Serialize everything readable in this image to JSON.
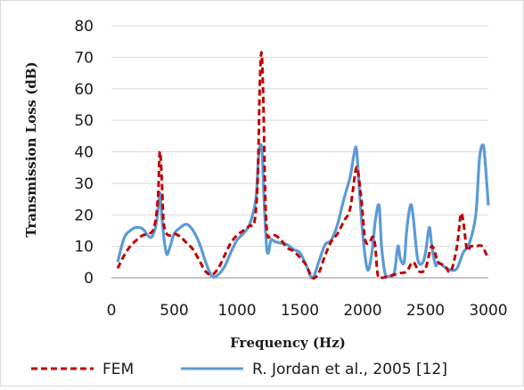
{
  "chart_data": {
    "type": "line",
    "xlabel": "Frequency (Hz)",
    "ylabel": "Transmission Loss (dB)",
    "xlim": [
      0,
      3000
    ],
    "ylim": [
      0,
      80
    ],
    "x_ticks": [
      0,
      500,
      1000,
      1500,
      2000,
      2500,
      3000
    ],
    "y_ticks": [
      0,
      10,
      20,
      30,
      40,
      50,
      60,
      70,
      80
    ],
    "grid": "horizontal",
    "legend_position": "bottom",
    "series": [
      {
        "name": "FEM",
        "color": "#c00000",
        "style": "dashed",
        "x": [
          50,
          100,
          150,
          200,
          250,
          300,
          340,
          370,
          385,
          400,
          415,
          440,
          470,
          500,
          550,
          600,
          650,
          700,
          750,
          800,
          850,
          900,
          950,
          1000,
          1050,
          1100,
          1140,
          1165,
          1180,
          1195,
          1210,
          1225,
          1240,
          1260,
          1300,
          1350,
          1400,
          1450,
          1500,
          1550,
          1600,
          1650,
          1700,
          1750,
          1800,
          1850,
          1900,
          1950,
          1980,
          2000,
          2020,
          2050,
          2080,
          2100,
          2120,
          2150,
          2200,
          2250,
          2300,
          2350,
          2400,
          2450,
          2500,
          2550,
          2600,
          2650,
          2700,
          2750,
          2780,
          2800,
          2830,
          2860,
          2900,
          2950,
          3000
        ],
        "values": [
          3,
          7,
          10,
          12,
          13.5,
          14,
          16,
          25,
          40,
          32,
          18,
          14,
          13.5,
          14,
          13,
          11,
          9,
          5.5,
          2,
          1,
          3,
          7,
          11,
          13.5,
          15,
          16.5,
          18,
          32,
          60,
          71.5,
          55,
          25,
          14,
          13,
          13.5,
          12,
          9.5,
          8.5,
          6.5,
          4,
          0,
          1.5,
          7,
          11.5,
          14,
          18,
          22,
          35,
          28,
          20,
          12,
          11,
          13,
          10,
          1,
          0,
          0.5,
          1,
          1.5,
          2,
          5,
          2,
          3,
          10,
          5,
          4,
          2,
          10,
          20,
          18,
          9,
          10,
          10,
          10,
          6
        ]
      },
      {
        "name": "R. Jordan et al., 2005 [12]",
        "color": "#5b9bd5",
        "style": "solid",
        "x": [
          50,
          100,
          150,
          200,
          250,
          300,
          330,
          360,
          385,
          400,
          420,
          440,
          460,
          500,
          550,
          600,
          650,
          700,
          750,
          800,
          850,
          900,
          950,
          1000,
          1050,
          1100,
          1150,
          1170,
          1185,
          1200,
          1215,
          1235,
          1250,
          1270,
          1300,
          1350,
          1400,
          1450,
          1500,
          1550,
          1600,
          1650,
          1700,
          1750,
          1800,
          1850,
          1900,
          1930,
          1950,
          1970,
          2000,
          2030,
          2050,
          2080,
          2100,
          2130,
          2150,
          2180,
          2200,
          2250,
          2280,
          2300,
          2330,
          2350,
          2380,
          2400,
          2430,
          2450,
          2480,
          2500,
          2530,
          2550,
          2580,
          2600,
          2650,
          2700,
          2750,
          2800,
          2850,
          2900,
          2930,
          2960,
          2980,
          3000
        ],
        "values": [
          5,
          12.5,
          15,
          16,
          15.5,
          13,
          13.5,
          18,
          27,
          20,
          12,
          7.5,
          9,
          14,
          16,
          17,
          15,
          11,
          5,
          0.5,
          1,
          3.5,
          8,
          12,
          14,
          17,
          25,
          38,
          42,
          40,
          25,
          10,
          8,
          12,
          11.5,
          11,
          10.5,
          9,
          8,
          4,
          0,
          5,
          10.5,
          12,
          17,
          25,
          32,
          39,
          41,
          30,
          14,
          4,
          3,
          10,
          18,
          23,
          10,
          1,
          0.5,
          1.5,
          10,
          6,
          5,
          15,
          23,
          20,
          8,
          4.5,
          5,
          8,
          16,
          10,
          4,
          5,
          3.5,
          2.5,
          3,
          8,
          11,
          20,
          38,
          42,
          34,
          23
        ]
      }
    ]
  }
}
